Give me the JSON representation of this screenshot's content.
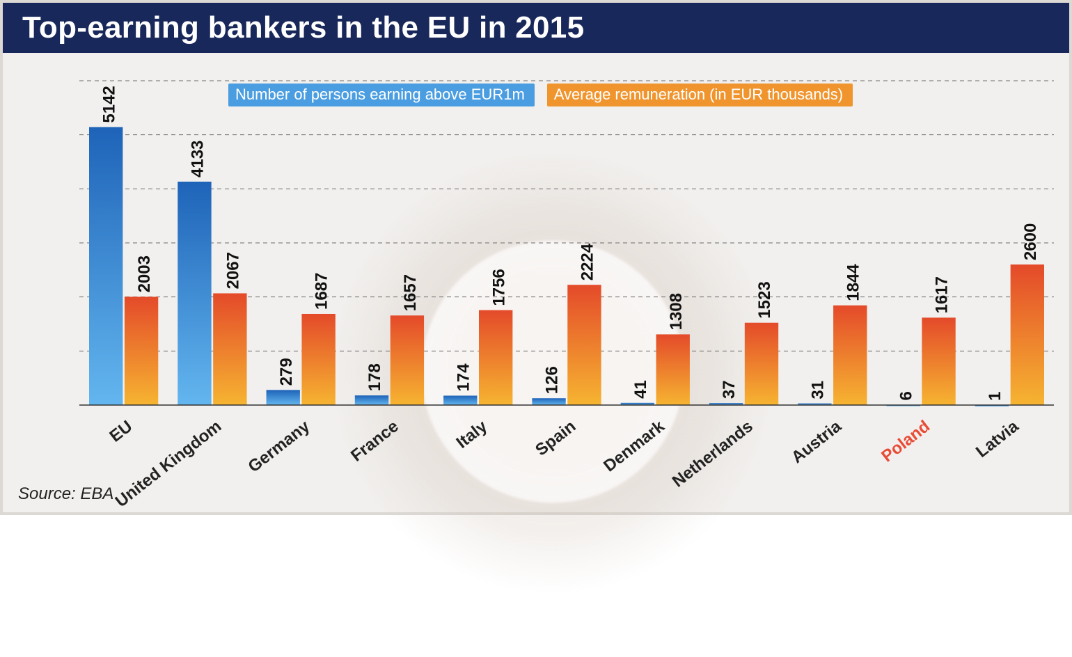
{
  "title": "Top-earning bankers in the EU in 2015",
  "source_label": "Source: EBA",
  "titlebar_color": "#19285a",
  "background_color": "#f2f0ee",
  "grid_color": "#6b6b6b",
  "legend": [
    {
      "label": "Number of persons earning above EUR1m",
      "bg": "#4a9de0"
    },
    {
      "label": "Average remuneration (in EUR thousands)",
      "bg": "#f0952e"
    }
  ],
  "chart": {
    "type": "grouped-bar",
    "ylim": [
      0,
      6000
    ],
    "ytick_step": 1000,
    "series_colors": {
      "count": {
        "top": "#1e63b8",
        "bottom": "#63b6ef"
      },
      "remun": {
        "top": "#e44a2a",
        "bottom": "#f6b431"
      }
    },
    "bar_label_fontsize": 24,
    "axis_fontsize": 24,
    "categories": [
      {
        "name": "EU",
        "count": 5142,
        "remun": 2003,
        "highlight": false
      },
      {
        "name": "United Kingdom",
        "count": 4133,
        "remun": 2067,
        "highlight": false
      },
      {
        "name": "Germany",
        "count": 279,
        "remun": 1687,
        "highlight": false
      },
      {
        "name": "France",
        "count": 178,
        "remun": 1657,
        "highlight": false
      },
      {
        "name": "Italy",
        "count": 174,
        "remun": 1756,
        "highlight": false
      },
      {
        "name": "Spain",
        "count": 126,
        "remun": 2224,
        "highlight": false
      },
      {
        "name": "Denmark",
        "count": 41,
        "remun": 1308,
        "highlight": false
      },
      {
        "name": "Netherlands",
        "count": 37,
        "remun": 1523,
        "highlight": false
      },
      {
        "name": "Austria",
        "count": 31,
        "remun": 1844,
        "highlight": false
      },
      {
        "name": "Poland",
        "count": 6,
        "remun": 1617,
        "highlight": true
      },
      {
        "name": "Latvia",
        "count": 1,
        "remun": 2600,
        "highlight": false
      }
    ]
  }
}
